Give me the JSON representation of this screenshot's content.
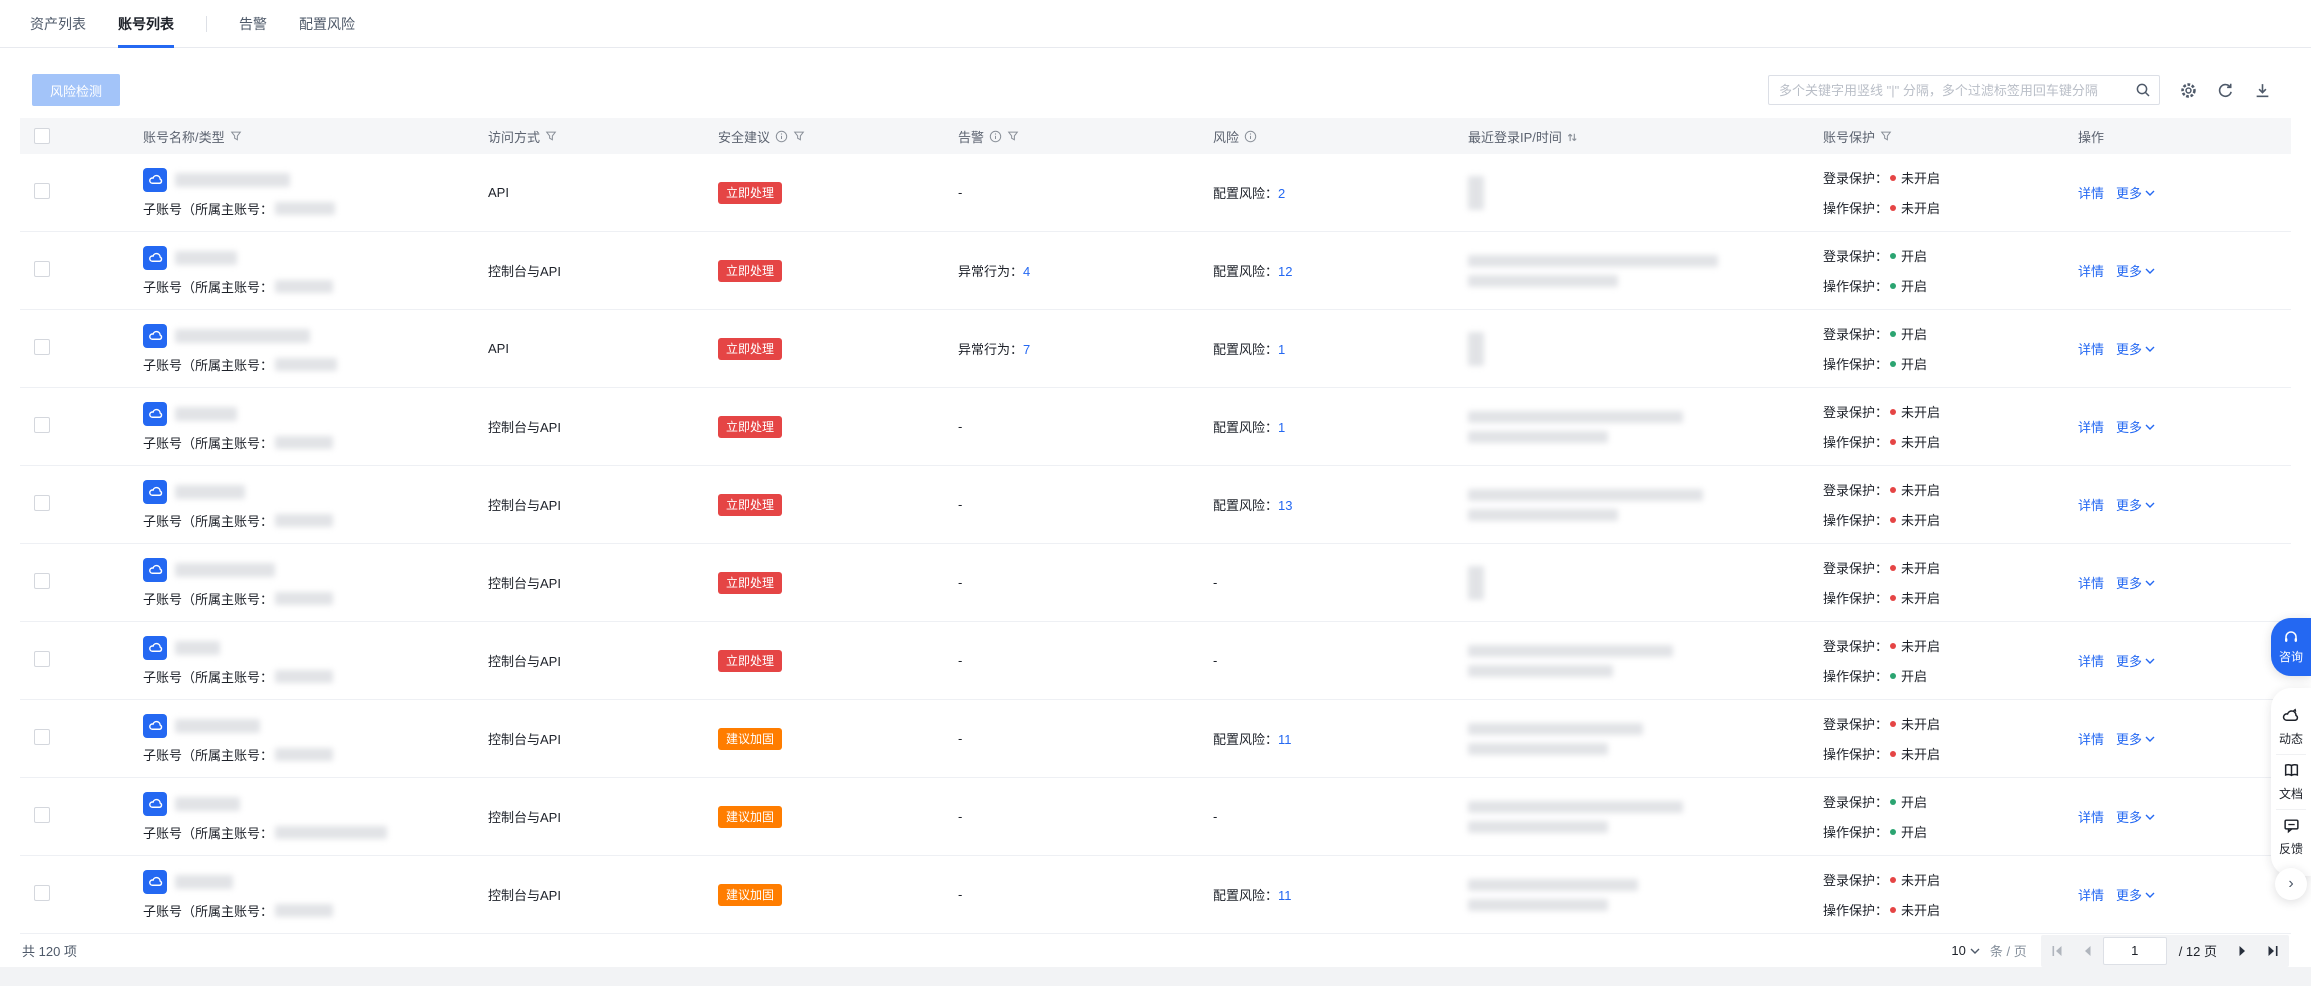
{
  "accent": "#2468f2",
  "tabs": [
    {
      "label": "资产列表",
      "active": false
    },
    {
      "label": "账号列表",
      "active": true
    },
    {
      "label": "告警",
      "active": false
    },
    {
      "label": "配置风险",
      "active": false
    }
  ],
  "toolbar": {
    "risk_check_label": "风险检测",
    "search_placeholder": "多个关键字用竖线 \"|\" 分隔，多个过滤标签用回车键分隔"
  },
  "table": {
    "columns": [
      {
        "key": "check",
        "label": "",
        "checkbox": true
      },
      {
        "key": "name",
        "label": "账号名称/类型",
        "filter": true
      },
      {
        "key": "access",
        "label": "访问方式",
        "filter": true
      },
      {
        "key": "advice",
        "label": "安全建议",
        "info": true,
        "filter": true
      },
      {
        "key": "alarm",
        "label": "告警",
        "info": true,
        "filter": true
      },
      {
        "key": "risk",
        "label": "风险",
        "info": true
      },
      {
        "key": "ip",
        "label": "最近登录IP/时间",
        "sort": true
      },
      {
        "key": "protect",
        "label": "账号保护",
        "filter": true
      },
      {
        "key": "action",
        "label": "操作"
      }
    ],
    "labels": {
      "sub_account_prefix": "子账号（所属主账号：",
      "alarm_prefix": "异常行为：",
      "risk_prefix": "配置风险：",
      "login_protect": "登录保护：",
      "op_protect": "操作保护：",
      "on": "开启",
      "off": "未开启",
      "detail": "详情",
      "more": "更多",
      "empty": "-"
    },
    "badges": {
      "urgent": {
        "label": "立即处理",
        "color": "#e54545"
      },
      "harden": {
        "label": "建议加固",
        "color": "#ff7d00"
      }
    },
    "protect_colors": {
      "on": "#2ba471",
      "off": "#e54545"
    },
    "rows": [
      {
        "access": "API",
        "advice": "urgent",
        "alarm": null,
        "risk": 2,
        "login": "off",
        "op": "off",
        "name_blur": 115,
        "owner_blur": 60,
        "ip_blur": [
          [
            16,
            34
          ]
        ]
      },
      {
        "access": "控制台与API",
        "advice": "urgent",
        "alarm": 4,
        "risk": 12,
        "login": "on",
        "op": "on",
        "name_blur": 62,
        "owner_blur": 58,
        "ip_blur": [
          [
            250,
            12
          ],
          [
            150,
            12
          ]
        ]
      },
      {
        "access": "API",
        "advice": "urgent",
        "alarm": 7,
        "risk": 1,
        "login": "on",
        "op": "on",
        "name_blur": 135,
        "owner_blur": 62,
        "ip_blur": [
          [
            16,
            34
          ]
        ]
      },
      {
        "access": "控制台与API",
        "advice": "urgent",
        "alarm": null,
        "risk": 1,
        "login": "off",
        "op": "off",
        "name_blur": 62,
        "owner_blur": 58,
        "ip_blur": [
          [
            215,
            12
          ],
          [
            140,
            12
          ]
        ]
      },
      {
        "access": "控制台与API",
        "advice": "urgent",
        "alarm": null,
        "risk": 13,
        "login": "off",
        "op": "off",
        "name_blur": 70,
        "owner_blur": 58,
        "ip_blur": [
          [
            235,
            12
          ],
          [
            150,
            12
          ]
        ]
      },
      {
        "access": "控制台与API",
        "advice": "urgent",
        "alarm": null,
        "risk": null,
        "login": "off",
        "op": "off",
        "name_blur": 100,
        "owner_blur": 58,
        "ip_blur": [
          [
            16,
            34
          ]
        ]
      },
      {
        "access": "控制台与API",
        "advice": "urgent",
        "alarm": null,
        "risk": null,
        "login": "off",
        "op": "on",
        "name_blur": 45,
        "owner_blur": 58,
        "ip_blur": [
          [
            205,
            12
          ],
          [
            145,
            12
          ]
        ]
      },
      {
        "access": "控制台与API",
        "advice": "harden",
        "alarm": null,
        "risk": 11,
        "login": "off",
        "op": "off",
        "name_blur": 85,
        "owner_blur": 58,
        "ip_blur": [
          [
            175,
            12
          ],
          [
            140,
            12
          ]
        ]
      },
      {
        "access": "控制台与API",
        "advice": "harden",
        "alarm": null,
        "risk": null,
        "login": "on",
        "op": "on",
        "name_blur": 65,
        "owner_blur": 112,
        "ip_blur": [
          [
            215,
            12
          ],
          [
            140,
            12
          ]
        ]
      },
      {
        "access": "控制台与API",
        "advice": "harden",
        "alarm": null,
        "risk": 11,
        "login": "off",
        "op": "off",
        "name_blur": 58,
        "owner_blur": 58,
        "ip_blur": [
          [
            170,
            12
          ],
          [
            140,
            12
          ]
        ]
      }
    ]
  },
  "footer": {
    "total": "共 120 项",
    "page_size": "10",
    "per_page_suffix": "条 / 页",
    "current_page": "1",
    "total_pages_label": "/ 12 页"
  },
  "float_menu": {
    "consult": "咨询",
    "items": [
      {
        "icon": "cloud-news-icon",
        "label": "动态"
      },
      {
        "icon": "docs-icon",
        "label": "文档"
      },
      {
        "icon": "feedback-icon",
        "label": "反馈"
      }
    ]
  }
}
